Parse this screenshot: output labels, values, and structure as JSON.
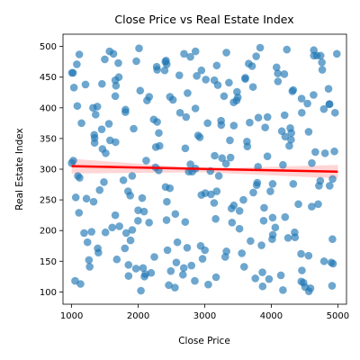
{
  "chart_data": {
    "type": "scatter",
    "title": "Close Price vs Real Estate Index",
    "xlabel": "Close Price",
    "ylabel": "Real Estate Index",
    "xlim": [
      870,
      5130
    ],
    "ylim": [
      80,
      520
    ],
    "x_ticks": [
      "1000",
      "2000",
      "3000",
      "4000",
      "5000"
    ],
    "y_ticks": [
      "100",
      "150",
      "200",
      "250",
      "300",
      "350",
      "400",
      "450",
      "500"
    ],
    "grid": false,
    "legend": "none",
    "colors": {
      "points": "#1f77b4",
      "trend_line": "#ff0000",
      "confidence_band": "#ffb3b3"
    },
    "trend_line": {
      "x": [
        1000,
        5000
      ],
      "y": [
        305,
        296
      ]
    },
    "confidence_band": {
      "x": [
        1000,
        3000,
        5000
      ],
      "upper": [
        317,
        301,
        307
      ],
      "lower": [
        293,
        295,
        285
      ]
    },
    "points": {
      "x": [
        1000,
        1052,
        1115,
        1223,
        1321,
        1392,
        1456,
        1512,
        1609,
        1701,
        1778,
        1854,
        1932,
        2013,
        2088,
        2165,
        2243,
        2321,
        2398,
        2476,
        2552,
        2629,
        2707,
        2784,
        2861,
        2938,
        3016,
        3093,
        3170,
        3248,
        3325,
        3402,
        3479,
        3557,
        3634,
        3711,
        3789,
        3866,
        3943,
        4020,
        4098,
        4175,
        4252,
        4330,
        4407,
        4484,
        4561,
        4639,
        4716,
        4793,
        4871,
        4948,
        1034,
        1187,
        1345,
        1498,
        1656,
        1809,
        1967,
        2120,
        2278,
        2431,
        2589,
        2742,
        2900,
        3053,
        3211,
        3364,
        3522,
        3675,
        3833,
        3986,
        4144,
        4297,
        4455,
        4608,
        4766,
        4919,
        1078,
        1271,
        1463,
        1656,
        1848,
        2041,
        2233,
        2426,
        2618,
        2811,
        3003,
        3196,
        3388,
        3581,
        3773,
        3966,
        4158,
        4351,
        4543,
        4736,
        4928,
        1110,
        1340,
        1570,
        1800,
        2030,
        2260,
        2490,
        2720,
        2950,
        3180,
        3410,
        3640,
        3870,
        4100,
        4330,
        4560,
        4790,
        4985,
        1148,
        1402,
        1656,
        1910,
        2164,
        2418,
        2672,
        2926,
        3180,
        3434,
        3688,
        3942,
        4196,
        4450,
        4704,
        4958,
        1021,
        1299,
        1577,
        1855,
        2133,
        2411,
        2689,
        2967,
        3245,
        3523,
        3801,
        4079,
        4357,
        4635,
        4913,
        1093,
        1386,
        1679,
        1972,
        2265,
        2558,
        2851,
        3144,
        3437,
        3730,
        4023,
        4316,
        4609,
        4902,
        1062,
        1345,
        1628,
        1911,
        2194,
        2477,
        2760,
        3043,
        3326,
        3609,
        3892,
        4175,
        4458,
        4741,
        1024,
        1238,
        1452,
        1666,
        1880,
        2094,
        2308,
        2522,
        2736,
        2950,
        3164,
        3378,
        3592,
        3806,
        4020,
        4234,
        4448,
        4662,
        4876,
        1133,
        1421,
        1709,
        1997,
        2285,
        2573,
        2861,
        3149,
        3437,
        3725,
        4013,
        4301,
        4589,
        4877,
        1005,
        1361,
        1717,
        2073,
        2429,
        2785,
        3141,
        3497,
        3853,
        4209,
        4565,
        4921,
        1208,
        1508,
        1808,
        2108,
        2408,
        2708,
        3008,
        3308,
        3608,
        3908,
        4208,
        4508,
        4808,
        1085,
        1485,
        1885,
        2285,
        2685,
        3085,
        3485,
        3885,
        4285,
        4685,
        1260,
        1660,
        2060,
        2460,
        2860,
        3260,
        3660,
        4060,
        4460,
        4860,
        1120,
        1560,
        2000,
        2440,
        2880,
        3320,
        3760,
        4200,
        4640,
        1330,
        1820,
        2310,
        2800,
        3290,
        3780,
        4270,
        4760
      ],
      "y": [
        310,
        118,
        487,
        252,
        400,
        171,
        439,
        326,
        205,
        473,
        282,
        144,
        366,
        497,
        231,
        418,
        157,
        338,
        461,
        269,
        107,
        392,
        214,
        483,
        301,
        175,
        446,
        259,
        124,
        372,
        490,
        236,
        412,
        163,
        345,
        468,
        278,
        132,
        385,
        221,
        456,
        307,
        188,
        429,
        243,
        115,
        361,
        494,
        273,
        150,
        406,
        329,
        433,
        196,
        351,
        479,
        225,
        397,
        138,
        314,
        467,
        247,
        181,
        424,
        355,
        112,
        289,
        441,
        203,
        376,
        498,
        264,
        127,
        348,
        415,
        239,
        462,
        186,
        471,
        141,
        333,
        419,
        264,
        102,
        381,
        217,
        453,
        296,
        168,
        437,
        319,
        250,
        484,
        121,
        362,
        197,
        407,
        281,
        146,
        229,
        356,
        492,
        171,
        428,
        303,
        134,
        385,
        258,
        469,
        213,
        337,
        109,
        443,
        276,
        159,
        398,
        488,
        375,
        164,
        445,
        289,
        213,
        477,
        128,
        352,
        264,
        409,
        183,
        321,
        455,
        117,
        243,
        392,
        457,
        198,
        347,
        126,
        412,
        271,
        488,
        154,
        379,
        232,
        304,
        466,
        189,
        421,
        110,
        289,
        402,
        153,
        476,
        336,
        227,
        118,
        445,
        371,
        262,
        193,
        427,
        310,
        148,
        254,
        343,
        488,
        201,
        131,
        418,
        296,
        375,
        166,
        449,
        237,
        103,
        392,
        485,
        314,
        181,
        365,
        436,
        257,
        125,
        298,
        413,
        172,
        461,
        219,
        347,
        141,
        384,
        276,
        495,
        162,
        328,
        406,
        113,
        266,
        450,
        216,
        377,
        148,
        492,
        322,
        241,
        434,
        186,
        359,
        106,
        273,
        457,
        389,
        207,
        139,
        471,
        308,
        245,
        417,
        176,
        353,
        101,
        284,
        438,
        197,
        393,
        129,
        475,
        334,
        261,
        157,
        447,
        368,
        222,
        108,
        326,
        403,
        279,
        184,
        462,
        139,
        297,
        426,
        216,
        367,
        485,
        152,
        344,
        253,
        111,
        399,
        318,
        472,
        205,
        135,
        431,
        286,
        374,
        233,
        168,
        452,
        309,
        122,
        388,
        485,
        247,
        196,
        359,
        143,
        419,
        274,
        338,
        474
      ]
    }
  }
}
